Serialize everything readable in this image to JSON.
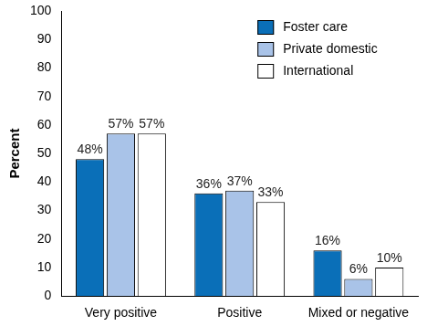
{
  "chart_data": {
    "type": "bar",
    "categories": [
      "Very positive",
      "Positive",
      "Mixed or negative"
    ],
    "series": [
      {
        "name": "Foster care",
        "color": "#0a6fb8",
        "values": [
          48,
          36,
          16
        ],
        "value_labels": [
          "48%",
          "36%",
          "16%"
        ]
      },
      {
        "name": "Private domestic",
        "color": "#a9c3e8",
        "values": [
          57,
          37,
          6
        ],
        "value_labels": [
          "57%",
          "37%",
          "6%"
        ]
      },
      {
        "name": "International",
        "color": "#ffffff",
        "values": [
          57,
          33,
          10
        ],
        "value_labels": [
          "57%",
          "33%",
          "10%"
        ]
      }
    ],
    "y_label": "Percent",
    "ylim": [
      0,
      100
    ],
    "yticks": [
      0,
      10,
      20,
      30,
      40,
      50,
      60,
      70,
      80,
      90,
      100
    ],
    "grid": false,
    "legend": "upper right",
    "data_labels": true
  }
}
